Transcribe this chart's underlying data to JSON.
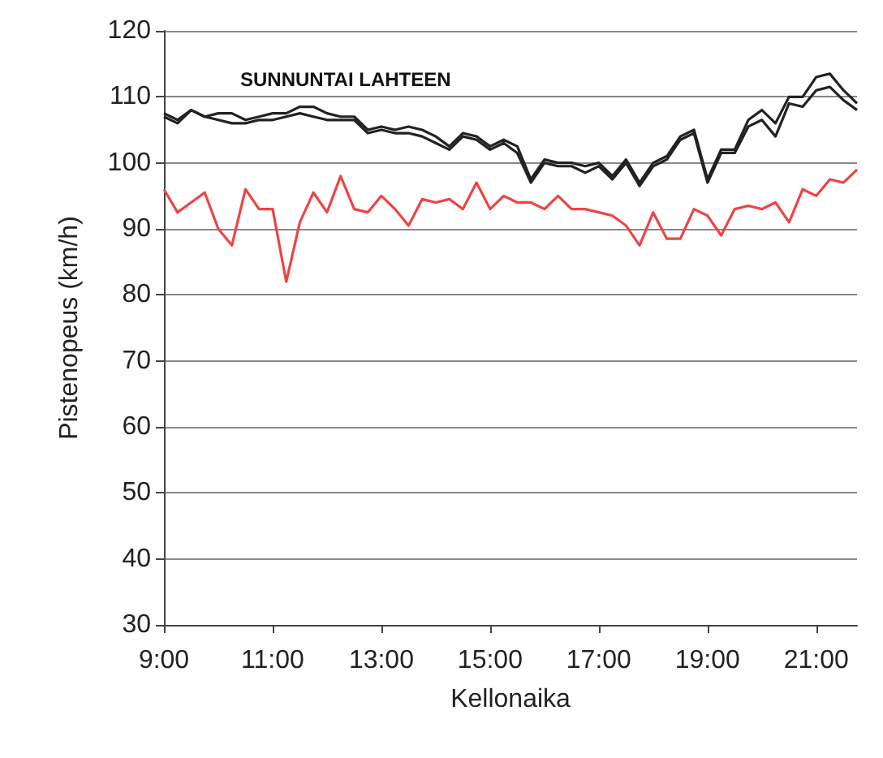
{
  "chart_data": {
    "type": "line",
    "title": "SUNNUNTAI LAHTEEN",
    "xlabel": "Kellonaika",
    "ylabel": "Pistenopeus (km/h)",
    "x": [
      9,
      9.25,
      9.5,
      9.75,
      10,
      10.25,
      10.5,
      10.75,
      11,
      11.25,
      11.5,
      11.75,
      12,
      12.25,
      12.5,
      12.75,
      13,
      13.25,
      13.5,
      13.75,
      14,
      14.25,
      14.5,
      14.75,
      15,
      15.25,
      15.5,
      15.75,
      16,
      16.25,
      16.5,
      16.75,
      17,
      17.25,
      17.5,
      17.75,
      18,
      18.25,
      18.5,
      18.75,
      19,
      19.25,
      19.5,
      19.75,
      20,
      20.25,
      20.5,
      20.75,
      21,
      21.25,
      21.5,
      21.75
    ],
    "series": [
      {
        "color": "#222222",
        "values": [
          107.5,
          106.5,
          108,
          107,
          107.5,
          107.5,
          106.5,
          107,
          107.5,
          107.5,
          108.5,
          108.5,
          107.5,
          107,
          107,
          105,
          105.5,
          105,
          105.5,
          105,
          104,
          102.5,
          104.5,
          104,
          102.5,
          103.5,
          102.5,
          97.5,
          100.5,
          100,
          100,
          99.5,
          100,
          98,
          100.5,
          97,
          100,
          101,
          104,
          105,
          97.5,
          102,
          102,
          106.5,
          108,
          106,
          110,
          110,
          113,
          113.5,
          111,
          109
        ]
      },
      {
        "color": "#222222",
        "values": [
          107,
          106,
          108,
          107,
          106.5,
          106,
          106,
          106.5,
          106.5,
          107,
          107.5,
          107,
          106.5,
          106.5,
          106.5,
          104.5,
          105,
          104.5,
          104.5,
          104,
          103,
          102,
          104,
          103.5,
          102,
          103,
          101.5,
          97,
          100,
          99.5,
          99.5,
          98.5,
          99.5,
          97.5,
          100,
          96.5,
          99.5,
          100.5,
          103.5,
          104.5,
          97,
          101.5,
          101.5,
          105.5,
          106.5,
          104,
          109,
          108.5,
          111,
          111.5,
          109.5,
          108
        ]
      },
      {
        "color": "#ee4444",
        "values": [
          96,
          92.5,
          94,
          95.5,
          90,
          87.5,
          96,
          93,
          93,
          82,
          91,
          95.5,
          92.5,
          98,
          93,
          92.5,
          95,
          93,
          90.5,
          94.5,
          94,
          94.5,
          93,
          97,
          93,
          95,
          94,
          94,
          93,
          95,
          93,
          93,
          92.5,
          92,
          90.5,
          87.5,
          92.5,
          88.5,
          88.5,
          93,
          92,
          89,
          93,
          93.5,
          93,
          94,
          91,
          96,
          95,
          97.5,
          97,
          99
        ]
      }
    ],
    "xlim": [
      9,
      21.75
    ],
    "xticks": [
      {
        "value": 9,
        "label": "9:00"
      },
      {
        "value": 11,
        "label": "11:00"
      },
      {
        "value": 13,
        "label": "13:00"
      },
      {
        "value": 15,
        "label": "15:00"
      },
      {
        "value": 17,
        "label": "17:00"
      },
      {
        "value": 19,
        "label": "19:00"
      },
      {
        "value": 21,
        "label": "21:00"
      }
    ],
    "ylim": [
      30,
      120
    ],
    "yticks": [
      30,
      40,
      50,
      60,
      70,
      80,
      90,
      100,
      110,
      120
    ],
    "grid": "y",
    "marker": "none",
    "line_style": "solid"
  }
}
